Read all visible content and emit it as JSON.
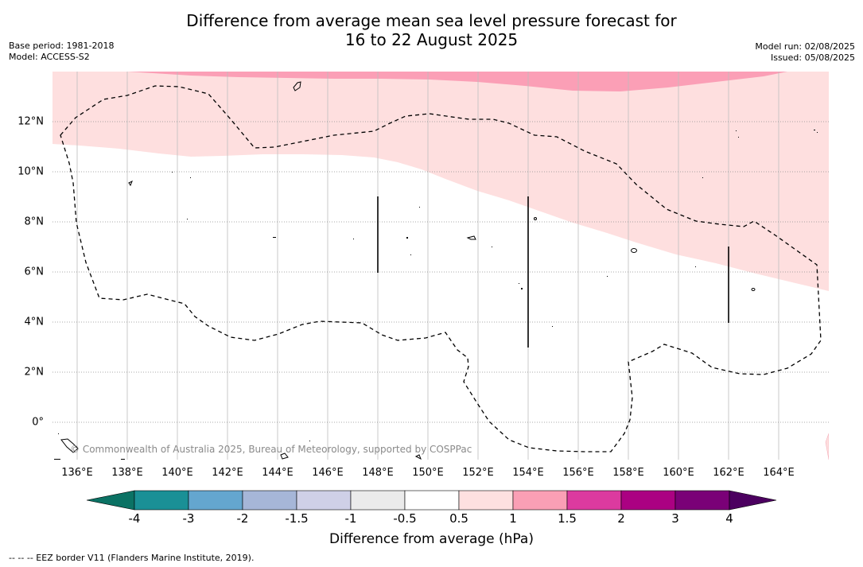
{
  "title": {
    "line1": "Difference from average mean sea level pressure forecast for",
    "line2": "16 to 22 August 2025"
  },
  "meta_left": {
    "base_period": "Base period: 1981-2018",
    "model": "Model: ACCESS-S2"
  },
  "meta_right": {
    "model_run": "Model run: 02/08/2025",
    "issued": "Issued: 05/08/2025"
  },
  "map": {
    "lon_ticks": [
      "136°E",
      "138°E",
      "140°E",
      "142°E",
      "144°E",
      "146°E",
      "148°E",
      "150°E",
      "152°E",
      "154°E",
      "156°E",
      "158°E",
      "160°E",
      "162°E",
      "164°E"
    ],
    "lat_ticks": [
      "12°N",
      "10°N",
      "8°N",
      "6°N",
      "4°N",
      "2°N",
      "0°"
    ],
    "lon_range": [
      135,
      166
    ],
    "lat_range": [
      -1.5,
      14
    ],
    "gridlines": true,
    "credit": "© Commonwealth of Australia 2025, Bureau of Meteorology, supported by COSPPac",
    "fill_colors": {
      "band_0_5_to_1": "#fedfdf",
      "band_1_to_1_5": "#fb9fb6"
    }
  },
  "colorbar": {
    "labels": [
      "-4",
      "-3",
      "-2",
      "-1.5",
      "-1",
      "-0.5",
      "0.5",
      "1",
      "1.5",
      "2",
      "3",
      "4"
    ],
    "colors": [
      "#1a9096",
      "#64a6cf",
      "#a6b6d8",
      "#cfd0e7",
      "#ebebeb",
      "#ffffff",
      "#fee0e0",
      "#fa9fb5",
      "#dc3a9f",
      "#ab0182",
      "#7a0177"
    ],
    "under_color": "#0b7264",
    "over_color": "#4c0060",
    "label": "Difference from average (hPa)"
  },
  "footnote": "--  --  -- EEZ border V11 (Flanders Marine Institute, 2019)."
}
